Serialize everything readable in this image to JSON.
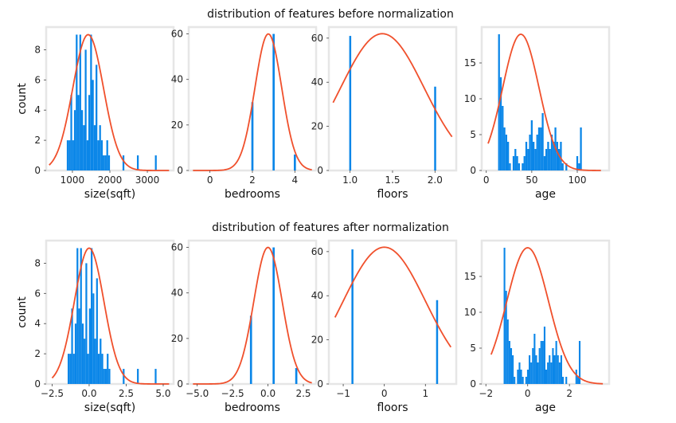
{
  "figure": {
    "titles": [
      "distribution of features before normalization",
      "distribution of features after normalization"
    ]
  },
  "colors": {
    "bars": "#0a86e8",
    "curve": "#f0502c",
    "frame": "#e6e6e6"
  },
  "chart_data": [
    {
      "row": 0,
      "col": 0,
      "type": "bar",
      "xlabel": "size(sqft)",
      "ylabel": "count",
      "xlim": [
        300,
        3700
      ],
      "ylim": [
        0,
        9.5
      ],
      "xticks": [
        1000,
        2000,
        3000
      ],
      "xticklabels": [
        "1000",
        "2000",
        "3000"
      ],
      "yticks": [
        0,
        2,
        4,
        6,
        8
      ],
      "yticklabels": [
        "0",
        "2",
        "4",
        "6",
        "8"
      ],
      "bin_edges_range": [
        850,
        3250
      ],
      "bins": 50,
      "counts": [
        2,
        2,
        5,
        2,
        4,
        9,
        5,
        9,
        4,
        3,
        8,
        2,
        5,
        9,
        6,
        3,
        7,
        2,
        3,
        2,
        1,
        1,
        2,
        1,
        0,
        0,
        0,
        0,
        0,
        0,
        0,
        1,
        0,
        0,
        0,
        0,
        0,
        0,
        0,
        1,
        0,
        0,
        0,
        0,
        0,
        0,
        0,
        0,
        0,
        1
      ],
      "curve": {
        "mean": 1420,
        "std": 410,
        "scale": 9.0,
        "range": [
          380,
          3580
        ]
      }
    },
    {
      "row": 0,
      "col": 1,
      "type": "bar",
      "xlabel": "bedrooms",
      "ylabel": "",
      "xlim": [
        -1,
        5
      ],
      "ylim": [
        0,
        63
      ],
      "xticks": [
        0,
        2,
        4
      ],
      "xticklabels": [
        "0",
        "2",
        "4"
      ],
      "yticks": [
        0,
        20,
        40,
        60
      ],
      "yticklabels": [
        "0",
        "20",
        "40",
        "60"
      ],
      "bars": [
        {
          "x": 2,
          "count": 30
        },
        {
          "x": 3,
          "count": 60
        },
        {
          "x": 4,
          "count": 7
        }
      ],
      "bar_width": 0.1,
      "curve": {
        "mean": 2.75,
        "std": 0.63,
        "scale": 60,
        "range": [
          -0.8,
          4.8
        ]
      }
    },
    {
      "row": 0,
      "col": 2,
      "type": "bar",
      "xlabel": "floors",
      "ylabel": "",
      "xlim": [
        0.75,
        2.25
      ],
      "ylim": [
        0,
        65
      ],
      "xticks": [
        1.0,
        1.5,
        2.0
      ],
      "xticklabels": [
        "1.0",
        "1.5",
        "2.0"
      ],
      "yticks": [
        0,
        20,
        40,
        60
      ],
      "yticklabels": [
        "0",
        "20",
        "40",
        "60"
      ],
      "bars": [
        {
          "x": 1.0,
          "count": 61
        },
        {
          "x": 2.0,
          "count": 38
        }
      ],
      "bar_width": 0.02,
      "curve": {
        "mean": 1.38,
        "std": 0.49,
        "scale": 62,
        "range": [
          0.8,
          2.2
        ]
      }
    },
    {
      "row": 0,
      "col": 3,
      "type": "bar",
      "xlabel": "age",
      "ylabel": "",
      "xlim": [
        -5,
        135
      ],
      "ylim": [
        0,
        20
      ],
      "xticks": [
        0,
        50,
        100
      ],
      "xticklabels": [
        "0",
        "50",
        "100"
      ],
      "yticks": [
        0,
        5,
        10,
        15
      ],
      "yticklabels": [
        "0",
        "5",
        "10",
        "15"
      ],
      "bin_edges_range": [
        13,
        113
      ],
      "bins": 50,
      "counts": [
        19,
        13,
        9,
        6,
        5,
        4,
        1,
        0,
        2,
        3,
        2,
        1,
        0,
        1,
        2,
        4,
        3,
        5,
        7,
        4,
        3,
        5,
        6,
        6,
        8,
        2,
        3,
        4,
        3,
        5,
        4,
        6,
        4,
        3,
        4,
        1,
        0,
        1,
        0,
        0,
        0,
        0,
        0,
        2,
        1,
        6,
        0,
        0,
        0,
        0
      ],
      "curve": {
        "mean": 38,
        "std": 20,
        "scale": 19,
        "range": [
          2,
          126
        ]
      }
    },
    {
      "row": 1,
      "col": 0,
      "type": "bar",
      "xlabel": "size(sqft)",
      "ylabel": "count",
      "xlim": [
        -2.9,
        5.7
      ],
      "ylim": [
        0,
        9.5
      ],
      "xticks": [
        -2.5,
        0.0,
        2.5,
        5.0
      ],
      "xticklabels": [
        "−2.5",
        "0.0",
        "2.5",
        "5.0"
      ],
      "yticks": [
        0,
        2,
        4,
        6,
        8
      ],
      "yticklabels": [
        "0",
        "2",
        "4",
        "6",
        "8"
      ],
      "bin_edges_range": [
        -1.45,
        4.55
      ],
      "bins": 50,
      "counts": [
        2,
        2,
        5,
        2,
        4,
        9,
        5,
        9,
        4,
        3,
        8,
        2,
        5,
        9,
        6,
        3,
        7,
        2,
        3,
        2,
        1,
        1,
        2,
        1,
        0,
        0,
        0,
        0,
        0,
        0,
        0,
        1,
        0,
        0,
        0,
        0,
        0,
        0,
        0,
        1,
        0,
        0,
        0,
        0,
        0,
        0,
        0,
        0,
        0,
        1
      ],
      "curve": {
        "mean": 0.0,
        "std": 1.0,
        "scale": 9.0,
        "range": [
          -2.5,
          5.4
        ]
      }
    },
    {
      "row": 1,
      "col": 1,
      "type": "bar",
      "xlabel": "bedrooms",
      "ylabel": "",
      "xlim": [
        -5.6,
        3.4
      ],
      "ylim": [
        0,
        63
      ],
      "xticks": [
        -5.0,
        -2.5,
        0.0,
        2.5
      ],
      "xticklabels": [
        "−5.0",
        "−2.5",
        "0.0",
        "2.5"
      ],
      "yticks": [
        0,
        20,
        40,
        60
      ],
      "yticklabels": [
        "0",
        "20",
        "40",
        "60"
      ],
      "bars": [
        {
          "x": -1.2,
          "count": 30
        },
        {
          "x": 0.4,
          "count": 60
        },
        {
          "x": 2.0,
          "count": 7
        }
      ],
      "bar_width": 0.15,
      "curve": {
        "mean": 0.0,
        "std": 1.0,
        "scale": 60,
        "range": [
          -5.3,
          3.1
        ]
      }
    },
    {
      "row": 1,
      "col": 2,
      "type": "bar",
      "xlabel": "floors",
      "ylabel": "",
      "xlim": [
        -1.35,
        1.75
      ],
      "ylim": [
        0,
        65
      ],
      "xticks": [
        -1,
        0,
        1
      ],
      "xticklabels": [
        "−1",
        "0",
        "1"
      ],
      "yticks": [
        0,
        20,
        40,
        60
      ],
      "yticklabels": [
        "0",
        "20",
        "40",
        "60"
      ],
      "bars": [
        {
          "x": -0.78,
          "count": 61
        },
        {
          "x": 1.28,
          "count": 38
        }
      ],
      "bar_width": 0.04,
      "curve": {
        "mean": 0.0,
        "std": 1.0,
        "scale": 62,
        "range": [
          -1.2,
          1.62
        ]
      }
    },
    {
      "row": 1,
      "col": 3,
      "type": "bar",
      "xlabel": "age",
      "ylabel": "",
      "xlim": [
        -2.2,
        3.9
      ],
      "ylim": [
        0,
        20
      ],
      "xticks": [
        -2,
        0,
        2
      ],
      "xticklabels": [
        "−2",
        "0",
        "2"
      ],
      "yticks": [
        0,
        5,
        10,
        15
      ],
      "yticklabels": [
        "0",
        "5",
        "10",
        "15"
      ],
      "bin_edges_range": [
        -1.15,
        2.85
      ],
      "bins": 50,
      "counts": [
        19,
        13,
        9,
        6,
        5,
        4,
        1,
        0,
        2,
        3,
        2,
        1,
        0,
        1,
        2,
        4,
        3,
        5,
        7,
        4,
        3,
        5,
        6,
        6,
        8,
        2,
        3,
        4,
        3,
        5,
        4,
        6,
        4,
        3,
        4,
        1,
        0,
        1,
        0,
        0,
        0,
        0,
        0,
        2,
        1,
        6,
        0,
        0,
        0,
        0
      ],
      "curve": {
        "mean": 0.0,
        "std": 1.0,
        "scale": 19,
        "range": [
          -1.75,
          3.6
        ]
      }
    }
  ]
}
